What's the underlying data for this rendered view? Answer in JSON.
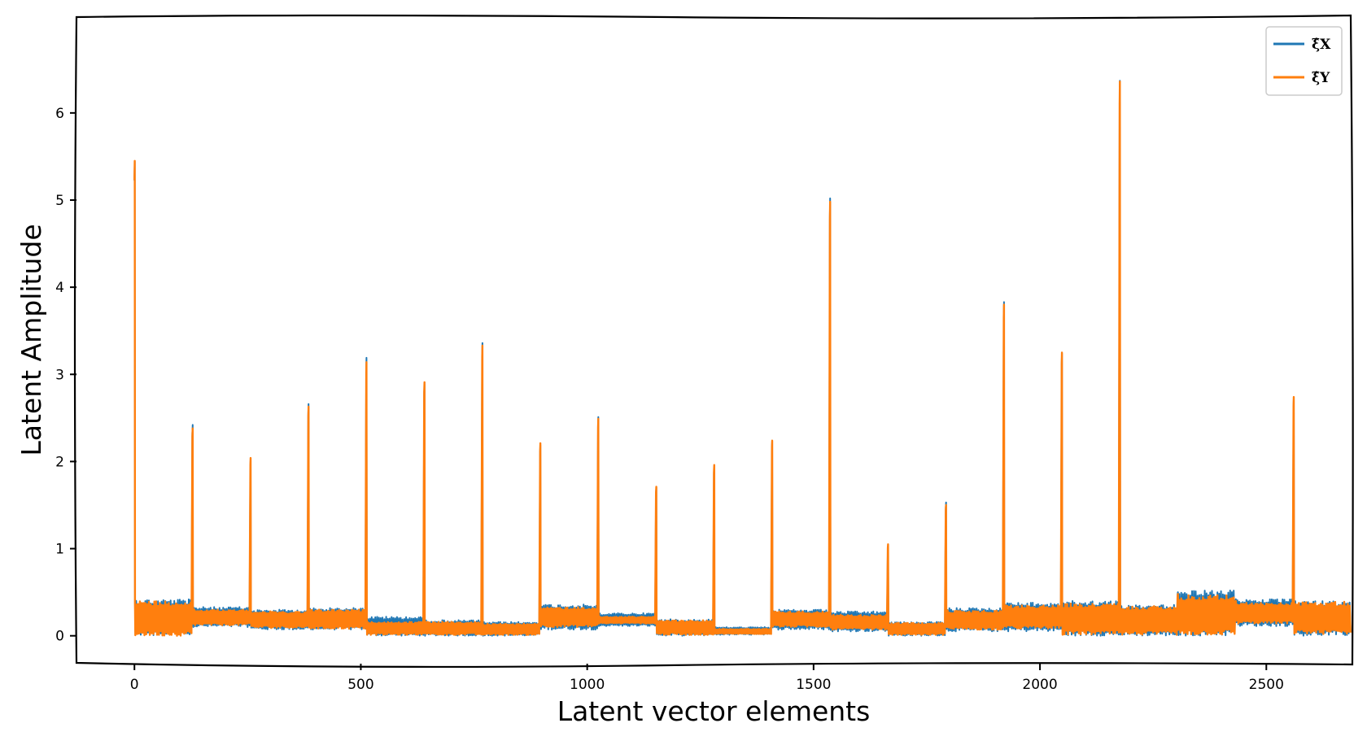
{
  "chart_data": {
    "type": "line",
    "title": "",
    "xlabel": "Latent vector elements",
    "ylabel": "Latent Amplitude",
    "xlim": [
      -128,
      2690
    ],
    "ylim": [
      -0.32,
      7.1
    ],
    "xticks": [
      0,
      500,
      1000,
      1500,
      2000,
      2500
    ],
    "yticks": [
      0,
      1,
      2,
      3,
      4,
      5,
      6
    ],
    "grid": false,
    "legend_position": "top-right",
    "block_size": 128,
    "series": [
      {
        "name": "ξ̂X",
        "color": "#1f77b4",
        "block_peaks": [
          5.44,
          2.42,
          2.02,
          2.66,
          3.19,
          2.89,
          3.36,
          2.19,
          2.51,
          1.7,
          1.94,
          2.23,
          5.02,
          1.03,
          1.53,
          3.83,
          3.24,
          6.37,
          0.5,
          0.42,
          2.72
        ],
        "block_noise_max": [
          0.42,
          0.33,
          0.3,
          0.32,
          0.22,
          0.18,
          0.16,
          0.36,
          0.26,
          0.19,
          0.1,
          0.3,
          0.28,
          0.16,
          0.32,
          0.38,
          0.4,
          0.36,
          0.52,
          0.42,
          0.4
        ],
        "block_noise_min": [
          0.0,
          0.1,
          0.07,
          0.07,
          0.0,
          0.0,
          0.0,
          0.07,
          0.11,
          0.0,
          0.01,
          0.07,
          0.05,
          0.0,
          0.05,
          0.05,
          0.0,
          0.0,
          0.0,
          0.11,
          0.0
        ]
      },
      {
        "name": "ξ̂Y",
        "color": "#ff7f0e",
        "block_peaks": [
          5.45,
          2.38,
          2.04,
          2.63,
          3.14,
          2.91,
          3.33,
          2.21,
          2.49,
          1.71,
          1.96,
          2.24,
          4.98,
          1.05,
          1.5,
          3.8,
          3.25,
          6.36,
          0.48,
          0.4,
          2.74
        ],
        "block_noise_max": [
          0.4,
          0.3,
          0.28,
          0.3,
          0.16,
          0.16,
          0.14,
          0.33,
          0.22,
          0.18,
          0.08,
          0.28,
          0.24,
          0.15,
          0.29,
          0.35,
          0.37,
          0.34,
          0.47,
          0.38,
          0.39
        ],
        "block_noise_min": [
          0.0,
          0.12,
          0.09,
          0.08,
          0.01,
          0.01,
          0.01,
          0.1,
          0.14,
          0.01,
          0.02,
          0.1,
          0.07,
          0.01,
          0.07,
          0.08,
          0.01,
          0.01,
          0.01,
          0.14,
          0.02
        ]
      }
    ]
  }
}
